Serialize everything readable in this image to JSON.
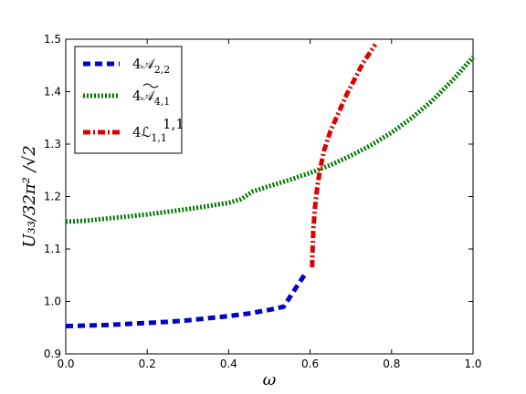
{
  "chart_data": {
    "type": "line",
    "xlabel": "ω",
    "ylabel": "U₃₃/32π² /√2",
    "xlim": [
      0.0,
      1.0
    ],
    "ylim": [
      0.9,
      1.5
    ],
    "xticks": [
      "0.0",
      "0.2",
      "0.4",
      "0.6",
      "0.8",
      "1.0"
    ],
    "yticks": [
      "0.9",
      "1.0",
      "1.1",
      "1.2",
      "1.3",
      "1.4",
      "1.5"
    ],
    "grid": false,
    "legend_position": "top-left",
    "series": [
      {
        "name": "4𝒜2,2",
        "legend_main": "4𝒜",
        "legend_sub": "2,2",
        "color": "#0000cc",
        "dash": "dashed",
        "x": [
          0.0,
          0.05,
          0.1,
          0.15,
          0.2,
          0.25,
          0.3,
          0.35,
          0.4,
          0.45,
          0.5,
          0.535,
          0.56,
          0.59
        ],
        "y": [
          0.953,
          0.954,
          0.955,
          0.957,
          0.959,
          0.961,
          0.964,
          0.968,
          0.972,
          0.977,
          0.984,
          0.99,
          1.02,
          1.055
        ]
      },
      {
        "name": "4Ã4,1",
        "legend_main": "4𝒜",
        "legend_tilde": true,
        "legend_sub": "4,1",
        "color": "#007700",
        "dash": "dotted",
        "x": [
          0.0,
          0.05,
          0.1,
          0.15,
          0.2,
          0.25,
          0.3,
          0.35,
          0.4,
          0.43,
          0.46,
          0.5,
          0.55,
          0.6,
          0.65,
          0.7,
          0.75,
          0.8,
          0.85,
          0.9,
          0.95,
          1.0
        ],
        "y": [
          1.152,
          1.154,
          1.158,
          1.162,
          1.166,
          1.171,
          1.176,
          1.182,
          1.188,
          1.195,
          1.21,
          1.22,
          1.232,
          1.245,
          1.26,
          1.278,
          1.298,
          1.322,
          1.35,
          1.383,
          1.422,
          1.466
        ]
      },
      {
        "name": "4ℒ1,1 1,1",
        "legend_main": "4ℒ",
        "legend_sub": "1,1",
        "legend_sup": "1,1",
        "color": "#dd0000",
        "dash": "dashdot",
        "x": [
          0.605,
          0.606,
          0.608,
          0.612,
          0.618,
          0.625,
          0.635,
          0.65,
          0.67,
          0.69,
          0.71,
          0.73,
          0.76
        ],
        "y": [
          1.065,
          1.1,
          1.14,
          1.18,
          1.22,
          1.255,
          1.29,
          1.325,
          1.36,
          1.395,
          1.425,
          1.455,
          1.49
        ]
      }
    ]
  }
}
